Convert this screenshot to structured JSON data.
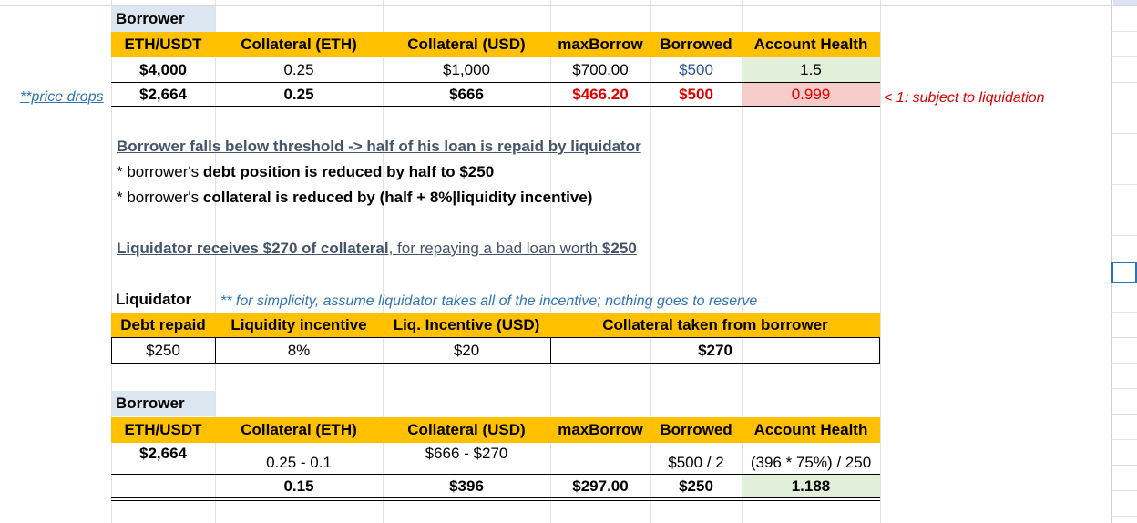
{
  "table1": {
    "label": "Borrower",
    "headers": [
      "ETH/USDT",
      "Collateral (ETH)",
      "Collateral (USD)",
      "maxBorrow",
      "Borrowed",
      "Account Health"
    ],
    "row1": [
      "$4,000",
      "0.25",
      "$1,000",
      "$700.00",
      "$500",
      "1.5"
    ],
    "row2": [
      "$2,664",
      "0.25",
      "$666",
      "$466.20",
      "$500",
      "0.999"
    ],
    "note_left": "**price drops",
    "note_right": "< 1: subject to liquidation"
  },
  "text": {
    "line1": "Borrower falls below threshold -> half of his loan is repaid by liquidator",
    "line2_a": "* borrower's ",
    "line2_b": "debt position is reduced by half to $250",
    "line3_a": "* borrower's ",
    "line3_b": "collateral is reduced by (half + 8%|liquidity incentive)",
    "line4_a": "Liquidator receives $270 of collateral",
    "line4_b": ", for repaying a bad loan worth ",
    "line4_c": "$250"
  },
  "table2": {
    "label": "Liquidator",
    "note": "** for simplicity, assume liquidator takes all of the incentive; nothing goes to reserve",
    "headers": [
      "Debt repaid",
      "Liquidity incentive",
      "Liq. Incentive (USD)",
      "Collateral taken from borrower"
    ],
    "row": [
      "$250",
      "8%",
      "$20",
      "$270"
    ]
  },
  "table3": {
    "label": "Borrower",
    "headers": [
      "ETH/USDT",
      "Collateral (ETH)",
      "Collateral (USD)",
      "maxBorrow",
      "Borrowed",
      "Account Health"
    ],
    "row1": [
      "$2,664",
      "0.25 - 0.1",
      "$666 - $270",
      "",
      "$500 / 2",
      "(396 * 75%) / 250"
    ],
    "row2": [
      "",
      "0.15",
      "$396",
      "$297.00",
      "$250",
      "1.188"
    ]
  }
}
